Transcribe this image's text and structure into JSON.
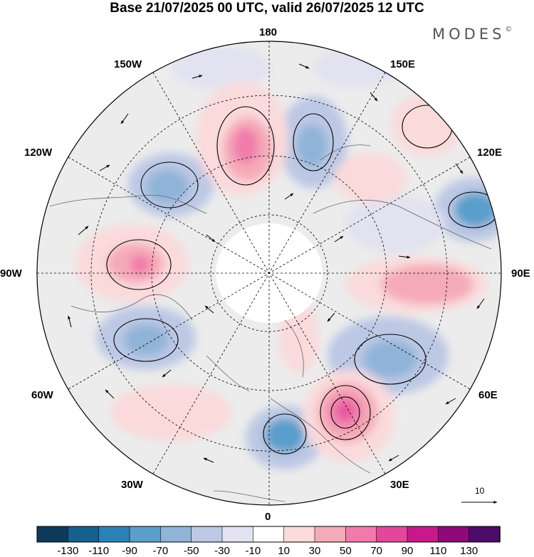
{
  "header": {
    "title": "Base 21/07/2025 00 UTC, valid 26/07/2025 12 UTC",
    "brand": "MODES",
    "brand_mark": "©"
  },
  "map": {
    "projection": "north polar stereographic",
    "longitude_labels": [
      "180",
      "150E",
      "120E",
      "90E",
      "60E",
      "30E",
      "0",
      "30W",
      "60W",
      "90W",
      "120W",
      "150W"
    ],
    "reference_vector_label": "10"
  },
  "colorbar": {
    "labels": [
      "-130",
      "-110",
      "-90",
      "-70",
      "-50",
      "-30",
      "-10",
      "10",
      "30",
      "50",
      "70",
      "90",
      "110",
      "130"
    ],
    "colors": [
      "#0e3a5c",
      "#14618f",
      "#2b82b8",
      "#5a9ecb",
      "#8fb4d8",
      "#bcc8e4",
      "#e2e2f0",
      "#ffffff",
      "#fadadb",
      "#f5aab8",
      "#f07bab",
      "#e2479c",
      "#c8198c",
      "#8e0a7a",
      "#4d0b6a"
    ],
    "edge_colors": [
      "#0e3a5c",
      "#4d0b6a"
    ]
  }
}
